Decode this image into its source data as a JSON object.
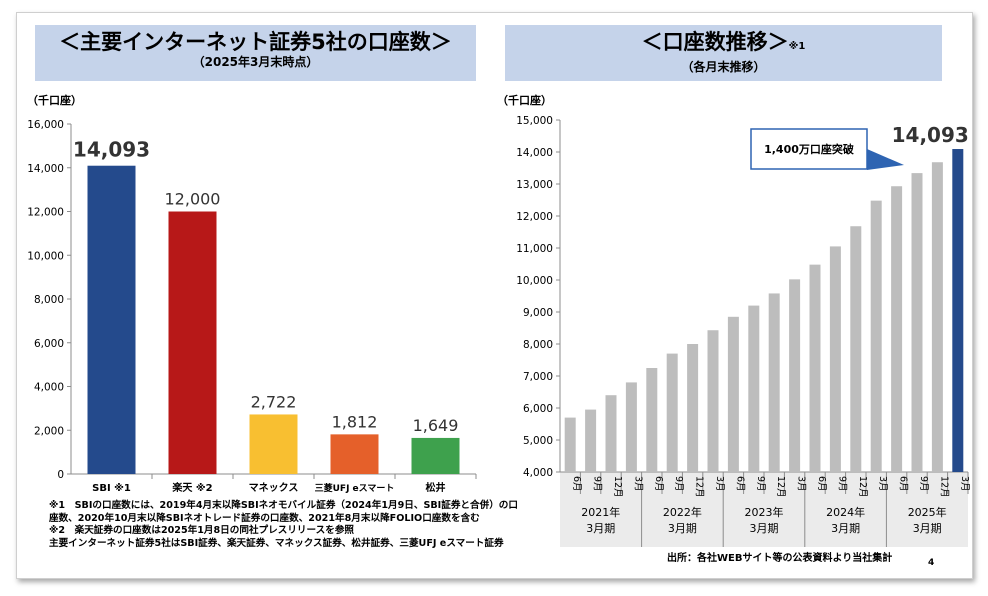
{
  "left": {
    "title": "＜主要インターネット証券5社の口座数＞",
    "subtitle": "（2025年3月末時点）",
    "unit": "（千口座）"
  },
  "right": {
    "title": "＜口座数推移＞",
    "title_note": "※1",
    "subtitle": "（各月末推移）",
    "unit": "（千口座）",
    "callout": "1,400万口座突破",
    "last_value_label": "14,093"
  },
  "chart_data": [
    {
      "type": "bar",
      "categories": [
        "SBI ※1",
        "楽天 ※2",
        "マネックス",
        "三菱UFJ eスマート",
        "松井"
      ],
      "values": [
        14093,
        12000,
        2722,
        1812,
        1649
      ],
      "value_labels": [
        "14,093",
        "12,000",
        "2,722",
        "1,812",
        "1,649"
      ],
      "colors": [
        "#244a8c",
        "#b71818",
        "#f8bf31",
        "#e5602a",
        "#3ea14d"
      ],
      "ylim": [
        0,
        16000
      ],
      "yticks": [
        "0",
        "2,000",
        "4,000",
        "6,000",
        "8,000",
        "10,000",
        "12,000",
        "14,000",
        "16,000"
      ],
      "grid": false
    },
    {
      "type": "bar",
      "x_months": [
        "6月",
        "9月",
        "12月",
        "3月",
        "6月",
        "9月",
        "12月",
        "3月",
        "6月",
        "9月",
        "12月",
        "3月",
        "6月",
        "9月",
        "12月",
        "3月",
        "6月",
        "9月",
        "12月",
        "3月"
      ],
      "x_groups": [
        {
          "year": "2021年",
          "term": "3月期"
        },
        {
          "year": "2022年",
          "term": "3月期"
        },
        {
          "year": "2023年",
          "term": "3月期"
        },
        {
          "year": "2024年",
          "term": "3月期"
        },
        {
          "year": "2025年",
          "term": "3月期"
        }
      ],
      "values": [
        5700,
        5950,
        6400,
        6800,
        7250,
        7700,
        8000,
        8430,
        8850,
        9200,
        9580,
        10020,
        10480,
        11050,
        11680,
        12480,
        12930,
        13340,
        13680,
        14093
      ],
      "colors": {
        "bar": "#bdbdbd",
        "highlight": "#244a8c"
      },
      "ylim": [
        4000,
        15000
      ],
      "yticks": [
        "4,000",
        "5,000",
        "6,000",
        "7,000",
        "8,000",
        "9,000",
        "10,000",
        "11,000",
        "12,000",
        "13,000",
        "14,000",
        "15,000"
      ],
      "grid": false
    }
  ],
  "footnotes": [
    "※1　SBIの口座数には、2019年4月末以降SBIネオモバイル証券（2024年1月9日、SBI証券と合併）の口座数、2020年10月末以降SBIネオトレード証券の口座数、2021年8月末以降FOLIO口座数を含む",
    "※2　楽天証券の口座数は2025年1月8日の同社プレスリリースを参照",
    "主要インターネット証券5社はSBI証券、楽天証券、マネックス証券、松井証券、三菱UFJ eスマート証券"
  ],
  "source": "出所：各社WEBサイト等の公表資料より当社集計",
  "page_number": "4"
}
